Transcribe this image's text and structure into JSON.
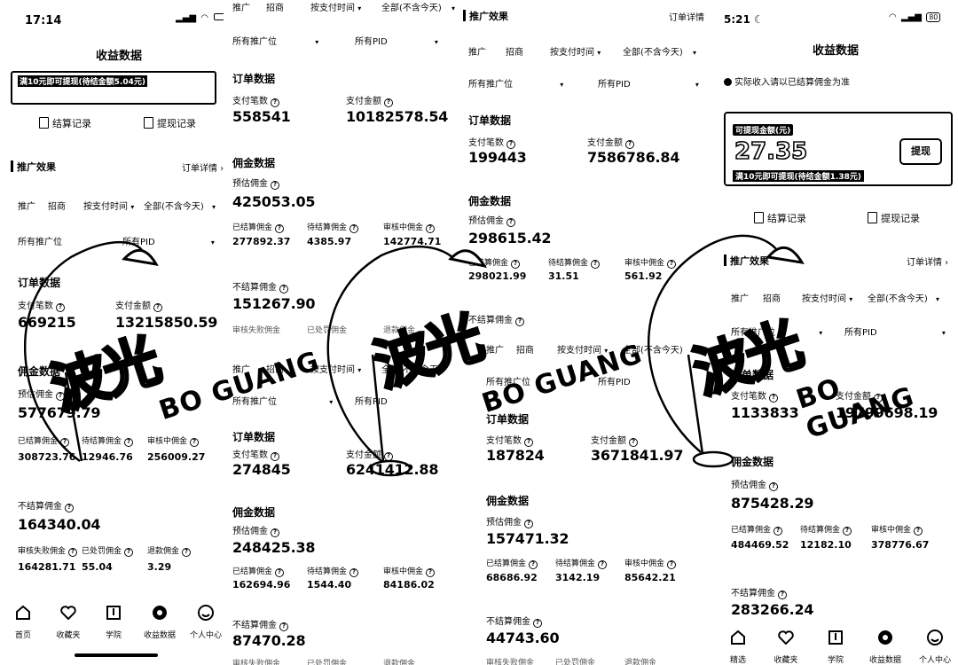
{
  "p1": {
    "time": "17:14",
    "title": "收益数据",
    "banner_note": "满10元即可提现(待结金额5.04元)",
    "settle_record": "结算记录",
    "withdraw_record": "提现记录",
    "promo_effect": "推广效果",
    "order_detail": "订单详情",
    "tab_promo": "推广",
    "tab_merchant": "招商",
    "by_pay_time": "按支付时间",
    "range": "全部(不含今天)",
    "all_positions": "所有推广位",
    "all_pid": "所有PID",
    "order_data": "订单数据",
    "pay_count_label": "支付笔数",
    "pay_count": "669215",
    "pay_amount_label": "支付金额",
    "pay_amount": "13215850.59",
    "commission_data": "佣金数据",
    "est_commission_label": "预估佣金",
    "est_commission": "577679.79",
    "settled_label": "已结算佣金",
    "settled": "308723.76",
    "pending_label": "待结算佣金",
    "pending": "12946.76",
    "reviewing_label": "审核中佣金",
    "reviewing": "256009.27",
    "unsettled_label": "不结算佣金",
    "unsettled": "164340.04",
    "audit_fail_label": "审核失败佣金",
    "audit_fail": "164281.71",
    "invalid_label": "已处罚佣金",
    "invalid": "55.04",
    "refund_label": "退款佣金",
    "refund": "3.29",
    "nav": [
      "首页",
      "收藏夹",
      "学院",
      "收益数据",
      "个人中心"
    ]
  },
  "p2": {
    "tab_promo": "推广",
    "tab_merchant": "招商",
    "by_pay_time": "按支付时间",
    "range": "全部(不含今天)",
    "all_positions": "所有推广位",
    "all_pid": "所有PID",
    "order_data": "订单数据",
    "pay_count_label": "支付笔数",
    "pay_count": "558541",
    "pay_amount_label": "支付金额",
    "pay_amount": "10182578.54",
    "commission_data": "佣金数据",
    "est_commission_label": "预估佣金",
    "est_commission": "425053.05",
    "settled_label": "已结算佣金",
    "settled": "277892.37",
    "pending_label": "待结算佣金",
    "pending": "4385.97",
    "reviewing_label": "审核中佣金",
    "reviewing": "142774.71",
    "unsettled_label": "不结算佣金",
    "unsettled": "151267.90",
    "audit_fail_label": "审核失败佣金",
    "invalid_label": "已处罚佣金",
    "refund_label": "退款佣金",
    "tab_promo_2": "推广",
    "tab_merchant_2": "招商",
    "by_pay_time_2": "按支付时间",
    "range_2": "全部(不含今天)",
    "all_positions_2": "所有推广位",
    "all_pid_2": "所有PID",
    "order_data_2": "订单数据",
    "pay_count_label_2": "支付笔数",
    "pay_count_2": "274845",
    "pay_amount_label_2": "支付金额",
    "pay_amount_2": "6241412.88",
    "commission_data_2": "佣金数据",
    "est_commission_label_2": "预估佣金",
    "est_commission_2": "248425.38",
    "settled_label_2": "已结算佣金",
    "settled_2": "162694.96",
    "pending_label_2": "待结算佣金",
    "pending_2": "1544.40",
    "reviewing_label_2": "审核中佣金",
    "reviewing_2": "84186.02",
    "unsettled_label_2": "不结算佣金",
    "unsettled_2": "87470.28",
    "audit_fail_label_2": "审核失败佣金",
    "invalid_label_2": "已处罚佣金",
    "refund_label_2": "退款佣金"
  },
  "p3": {
    "promo_effect": "推广效果",
    "order_detail": "订单详情",
    "tab_promo": "推广",
    "tab_merchant": "招商",
    "by_pay_time": "按支付时间",
    "range": "全部(不含今天)",
    "all_positions": "所有推广位",
    "all_pid": "所有PID",
    "order_data": "订单数据",
    "pay_count_label": "支付笔数",
    "pay_count": "199443",
    "pay_amount_label": "支付金额",
    "pay_amount": "7586786.84",
    "commission_data": "佣金数据",
    "est_commission_label": "预估佣金",
    "est_commission": "298615.42",
    "settled_label": "已结算佣金",
    "settled": "298021.99",
    "pending_label": "待结算佣金",
    "pending": "31.51",
    "reviewing_label": "审核中佣金",
    "reviewing": "561.92",
    "unsettled_label": "不结算佣金",
    "tab_promo_2": "推广",
    "tab_merchant_2": "招商",
    "by_pay_time_2": "按支付时间",
    "range_2": "全部(不含今天)",
    "all_positions_2": "所有推广位",
    "all_pid_2": "所有PID",
    "order_data_2": "订单数据",
    "pay_count_label_2": "支付笔数",
    "pay_count_2": "187824",
    "pay_amount_label_2": "支付金额",
    "pay_amount_2": "3671841.97",
    "commission_data_2": "佣金数据",
    "est_commission_label_2": "预估佣金",
    "est_commission_2": "157471.32",
    "settled_label_2": "已结算佣金",
    "settled_2": "68686.92",
    "pending_label_2": "待结算佣金",
    "pending_2": "3142.19",
    "reviewing_label_2": "审核中佣金",
    "reviewing_2": "85642.21",
    "unsettled_label_2": "不结算佣金",
    "unsettled_2": "44743.60",
    "audit_fail_label_2": "审核失败佣金",
    "invalid_label_2": "已处罚佣金",
    "refund_label_2": "退款佣金"
  },
  "p4": {
    "time": "5:21",
    "battery": "80",
    "title": "收益数据",
    "notice": "实际收入请以已结算佣金为准",
    "withdrawable_label": "可提现金额(元)",
    "withdrawable": "27.35",
    "banner_note": "满10元即可提现(待结金额1.38元)",
    "withdraw_btn": "提现",
    "settle_record": "结算记录",
    "withdraw_record": "提现记录",
    "promo_effect": "推广效果",
    "order_detail": "订单详情",
    "tab_promo": "推广",
    "tab_merchant": "招商",
    "by_pay_time": "按支付时间",
    "range": "全部(不含今天)",
    "all_positions": "所有推广位",
    "all_pid": "所有PID",
    "order_data": "订单数据",
    "pay_count_label": "支付笔数",
    "pay_count": "1133833",
    "pay_amount_label": "支付金额",
    "pay_amount": "19799698.19",
    "commission_data": "佣金数据",
    "est_commission_label": "预估佣金",
    "est_commission": "875428.29",
    "settled_label": "已结算佣金",
    "settled": "484469.52",
    "pending_label": "待结算佣金",
    "pending": "12182.10",
    "reviewing_label": "审核中佣金",
    "reviewing": "378776.67",
    "unsettled_label": "不结算佣金",
    "unsettled": "283266.24",
    "nav": [
      "精选",
      "收藏夹",
      "学院",
      "收益数据",
      "个人中心"
    ]
  },
  "watermark": {
    "cn": "波光",
    "en": "BO GUANG"
  }
}
